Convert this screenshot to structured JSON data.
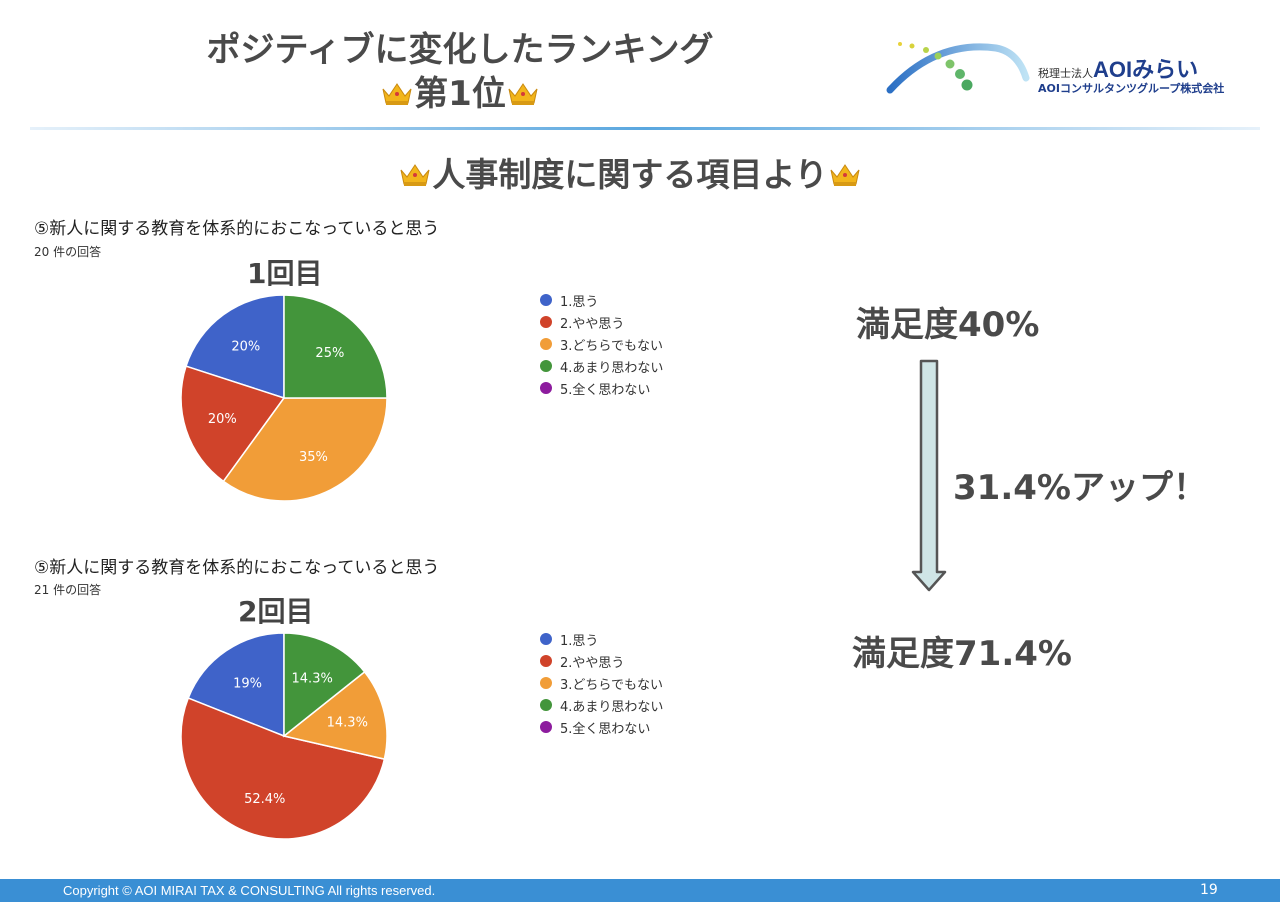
{
  "header": {
    "title_line1": "ポジティブに変化したランキング",
    "title_line2": "第1位",
    "logo_prefix": "税理士法人",
    "logo_name": "AOIみらい",
    "logo_group": "AOIコンサルタンツグループ株式会社"
  },
  "section_title": "人事制度に関する項目より",
  "survey1": {
    "question": "⑤新人に関する教育を体系的におこなっていると思う",
    "responses": "20 件の回答",
    "round_label": "1回目"
  },
  "survey2": {
    "question": "⑤新人に関する教育を体系的におこなっていると思う",
    "responses": "21 件の回答",
    "round_label": "2回目"
  },
  "legend": [
    {
      "label": "1.思う",
      "color": "#3f63c9"
    },
    {
      "label": "2.やや思う",
      "color": "#d0432a"
    },
    {
      "label": "3.どちらでもない",
      "color": "#f19d38"
    },
    {
      "label": "4.あまり思わない",
      "color": "#43953b"
    },
    {
      "label": "5.全く思わない",
      "color": "#8d1c9e"
    }
  ],
  "summary": {
    "before": "満足度40%",
    "change": "31.4%アップ！",
    "after": "満足度71.4%"
  },
  "footer": {
    "copyright": "Copyright © AOI MIRAI TAX & CONSULTING   All rights reserved.",
    "page_number": "19"
  },
  "chart_data": [
    {
      "type": "pie",
      "title": "1回目",
      "categories": [
        "1.思う",
        "2.やや思う",
        "3.どちらでもない",
        "4.あまり思わない",
        "5.全く思わない"
      ],
      "values": [
        20,
        20,
        35,
        25,
        0
      ],
      "labels": [
        "20%",
        "20%",
        "35%",
        "25%",
        ""
      ],
      "colors": [
        "#3f63c9",
        "#d0432a",
        "#f19d38",
        "#43953b",
        "#8d1c9e"
      ],
      "legend": "right"
    },
    {
      "type": "pie",
      "title": "2回目",
      "categories": [
        "1.思う",
        "2.やや思う",
        "3.どちらでもない",
        "4.あまり思わない",
        "5.全く思わない"
      ],
      "values": [
        19,
        52.4,
        14.3,
        14.3,
        0
      ],
      "labels": [
        "19%",
        "52.4%",
        "14.3%",
        "14.3%",
        ""
      ],
      "colors": [
        "#3f63c9",
        "#d0432a",
        "#f19d38",
        "#43953b",
        "#8d1c9e"
      ],
      "legend": "right"
    }
  ]
}
